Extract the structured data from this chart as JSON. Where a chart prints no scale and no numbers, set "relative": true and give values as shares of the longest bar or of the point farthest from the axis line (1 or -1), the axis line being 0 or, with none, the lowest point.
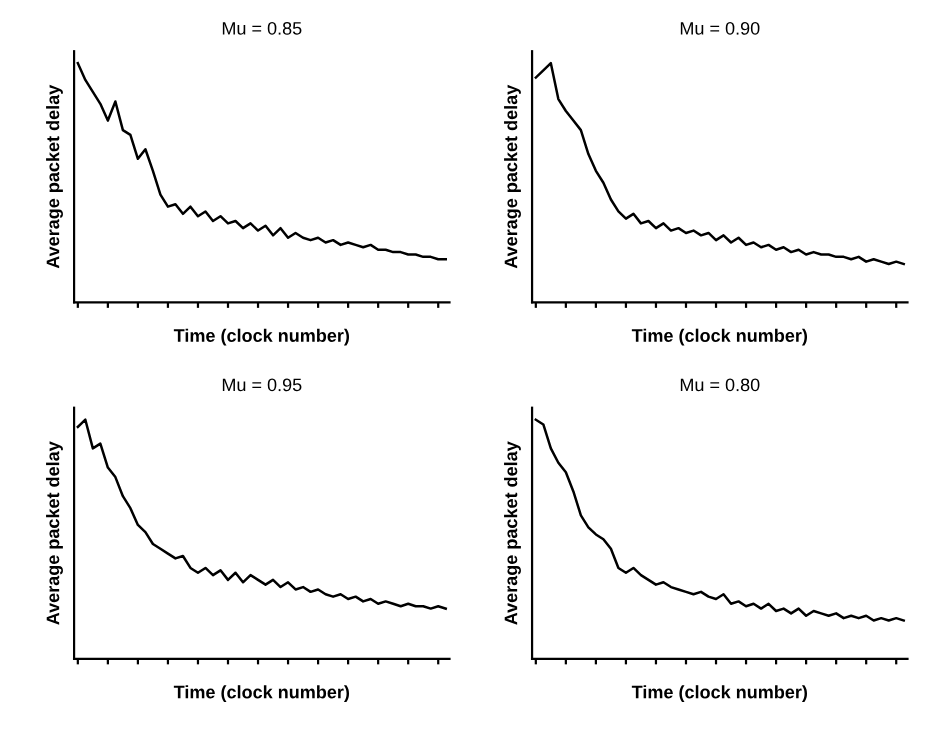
{
  "chart_data": [
    {
      "type": "line",
      "title": "Mu = 0.85",
      "xlabel": "Time (clock number)",
      "ylabel": "Average packet delay",
      "relative": true,
      "categories": [
        null,
        null,
        null,
        null,
        null,
        null,
        null,
        null,
        null,
        null,
        null,
        null,
        null,
        null,
        null,
        null,
        null,
        null,
        null,
        null,
        null,
        null,
        null,
        null,
        null,
        null,
        null,
        null,
        null,
        null,
        null,
        null,
        null,
        null,
        null,
        null,
        null,
        null,
        null,
        null,
        null,
        null,
        null,
        null,
        null,
        null,
        null,
        null,
        null,
        null
      ],
      "series": [
        {
          "color": "#000000",
          "values": [
            1.0,
            0.93,
            0.88,
            0.83,
            0.76,
            0.84,
            0.72,
            0.7,
            0.6,
            0.64,
            0.55,
            0.45,
            0.4,
            0.41,
            0.37,
            0.4,
            0.36,
            0.38,
            0.34,
            0.36,
            0.33,
            0.34,
            0.31,
            0.33,
            0.3,
            0.32,
            0.28,
            0.31,
            0.27,
            0.29,
            0.27,
            0.26,
            0.27,
            0.25,
            0.26,
            0.24,
            0.25,
            0.24,
            0.23,
            0.24,
            0.22,
            0.22,
            0.21,
            0.21,
            0.2,
            0.2,
            0.19,
            0.19,
            0.18,
            0.18
          ]
        }
      ]
    },
    {
      "type": "line",
      "title": "Mu = 0.90",
      "xlabel": "Time (clock number)",
      "ylabel": "Average packet delay",
      "relative": true,
      "categories": [
        null,
        null,
        null,
        null,
        null,
        null,
        null,
        null,
        null,
        null,
        null,
        null,
        null,
        null,
        null,
        null,
        null,
        null,
        null,
        null,
        null,
        null,
        null,
        null,
        null,
        null,
        null,
        null,
        null,
        null,
        null,
        null,
        null,
        null,
        null,
        null,
        null,
        null,
        null,
        null,
        null,
        null,
        null,
        null,
        null,
        null,
        null,
        null,
        null,
        null
      ],
      "series": [
        {
          "color": "#000000",
          "values": [
            0.94,
            0.97,
            1.0,
            0.85,
            0.8,
            0.76,
            0.72,
            0.62,
            0.55,
            0.5,
            0.43,
            0.38,
            0.35,
            0.37,
            0.33,
            0.34,
            0.31,
            0.33,
            0.3,
            0.31,
            0.29,
            0.3,
            0.28,
            0.29,
            0.26,
            0.28,
            0.25,
            0.27,
            0.24,
            0.25,
            0.23,
            0.24,
            0.22,
            0.23,
            0.21,
            0.22,
            0.2,
            0.21,
            0.2,
            0.2,
            0.19,
            0.19,
            0.18,
            0.19,
            0.17,
            0.18,
            0.17,
            0.16,
            0.17,
            0.16
          ]
        }
      ]
    },
    {
      "type": "line",
      "title": "Mu = 0.95",
      "xlabel": "Time (clock number)",
      "ylabel": "Average packet delay",
      "relative": true,
      "categories": [
        null,
        null,
        null,
        null,
        null,
        null,
        null,
        null,
        null,
        null,
        null,
        null,
        null,
        null,
        null,
        null,
        null,
        null,
        null,
        null,
        null,
        null,
        null,
        null,
        null,
        null,
        null,
        null,
        null,
        null,
        null,
        null,
        null,
        null,
        null,
        null,
        null,
        null,
        null,
        null,
        null,
        null,
        null,
        null,
        null,
        null,
        null,
        null,
        null,
        null
      ],
      "series": [
        {
          "color": "#000000",
          "values": [
            0.97,
            1.0,
            0.88,
            0.9,
            0.8,
            0.76,
            0.68,
            0.63,
            0.56,
            0.53,
            0.48,
            0.46,
            0.44,
            0.42,
            0.43,
            0.38,
            0.36,
            0.38,
            0.35,
            0.37,
            0.33,
            0.36,
            0.32,
            0.35,
            0.33,
            0.31,
            0.33,
            0.3,
            0.32,
            0.29,
            0.3,
            0.28,
            0.29,
            0.27,
            0.26,
            0.27,
            0.25,
            0.26,
            0.24,
            0.25,
            0.23,
            0.24,
            0.23,
            0.22,
            0.23,
            0.22,
            0.22,
            0.21,
            0.22,
            0.21
          ]
        }
      ]
    },
    {
      "type": "line",
      "title": "Mu = 0.80",
      "xlabel": "Time (clock number)",
      "ylabel": "Average packet delay",
      "relative": true,
      "categories": [
        null,
        null,
        null,
        null,
        null,
        null,
        null,
        null,
        null,
        null,
        null,
        null,
        null,
        null,
        null,
        null,
        null,
        null,
        null,
        null,
        null,
        null,
        null,
        null,
        null,
        null,
        null,
        null,
        null,
        null,
        null,
        null,
        null,
        null,
        null,
        null,
        null,
        null,
        null,
        null,
        null,
        null,
        null,
        null,
        null,
        null,
        null,
        null,
        null,
        null
      ],
      "series": [
        {
          "color": "#000000",
          "values": [
            1.0,
            0.98,
            0.88,
            0.82,
            0.78,
            0.7,
            0.6,
            0.55,
            0.52,
            0.5,
            0.46,
            0.38,
            0.36,
            0.38,
            0.35,
            0.33,
            0.31,
            0.32,
            0.3,
            0.29,
            0.28,
            0.27,
            0.28,
            0.26,
            0.25,
            0.27,
            0.23,
            0.24,
            0.22,
            0.23,
            0.21,
            0.23,
            0.2,
            0.21,
            0.19,
            0.21,
            0.18,
            0.2,
            0.19,
            0.18,
            0.19,
            0.17,
            0.18,
            0.17,
            0.18,
            0.16,
            0.17,
            0.16,
            0.17,
            0.16
          ]
        }
      ]
    }
  ]
}
